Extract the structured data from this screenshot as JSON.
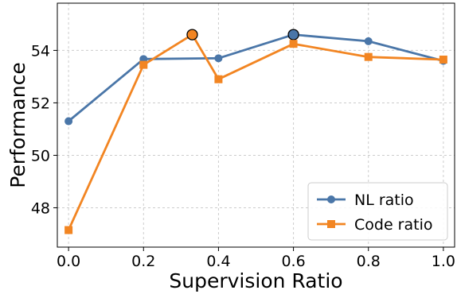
{
  "chart_data": {
    "type": "line",
    "title": "",
    "xlabel": "Supervision Ratio",
    "ylabel": "Performance",
    "xlim": [
      -0.03,
      1.03
    ],
    "ylim": [
      46.5,
      55.8
    ],
    "xticks": [
      0.0,
      0.2,
      0.4,
      0.6,
      0.8,
      1.0
    ],
    "xtick_labels": [
      "0.0",
      "0.2",
      "0.4",
      "0.6",
      "0.8",
      "1.0"
    ],
    "yticks": [
      48,
      50,
      52,
      54
    ],
    "ytick_labels": [
      "48",
      "50",
      "52",
      "54"
    ],
    "grid": true,
    "legend_position": "lower-right",
    "series": [
      {
        "name": "NL ratio",
        "color": "#4a76a8",
        "marker": "circle",
        "x": [
          0.0,
          0.2,
          0.4,
          0.6,
          0.8,
          1.0
        ],
        "y": [
          51.3,
          53.67,
          53.7,
          54.6,
          54.35,
          53.6
        ],
        "highlight": {
          "x": 0.6,
          "y": 54.6
        }
      },
      {
        "name": "Code ratio",
        "color": "#f28522",
        "marker": "square",
        "x": [
          0.0,
          0.2,
          0.33,
          0.4,
          0.6,
          0.8,
          1.0
        ],
        "y": [
          47.15,
          53.45,
          54.6,
          52.9,
          54.25,
          53.75,
          53.65
        ],
        "highlight": {
          "x": 0.33,
          "y": 54.6
        }
      }
    ]
  }
}
